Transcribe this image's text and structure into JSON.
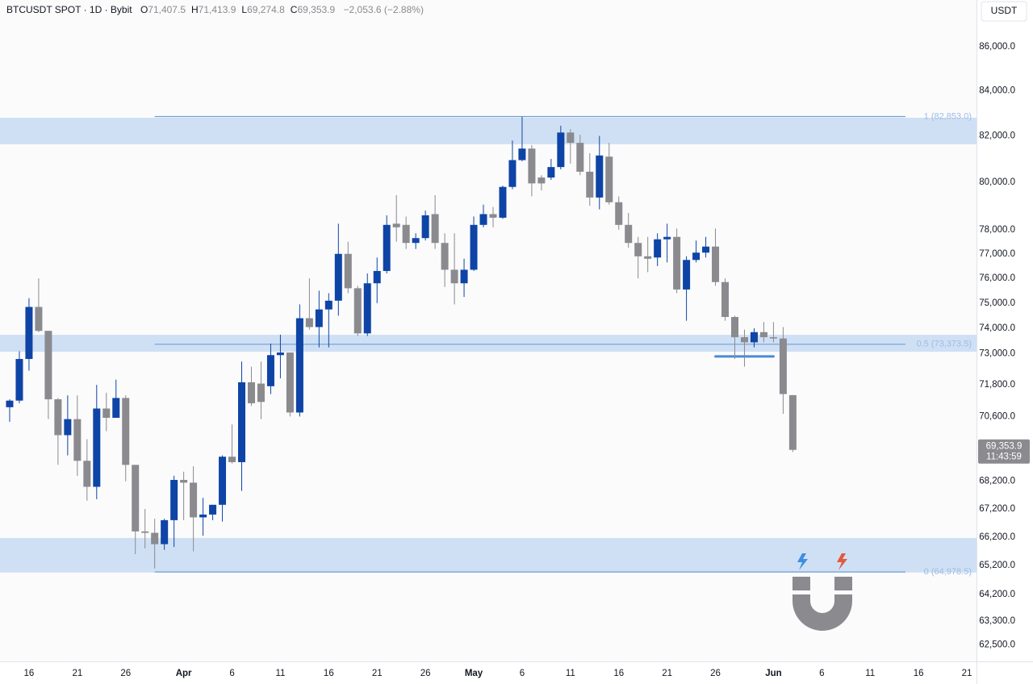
{
  "chart_data": {
    "type": "candlestick",
    "header": {
      "symbol": "BTCUSDT SPOT · 1D · Bybit",
      "fields": [
        {
          "key": "O",
          "value": "71,407.5"
        },
        {
          "key": "H",
          "value": "71,413.9"
        },
        {
          "key": "L",
          "value": "69,274.8"
        },
        {
          "key": "C",
          "value": "69,353.9"
        }
      ],
      "change": "−2,053.6 (−2.88%)"
    },
    "currency": "USDT",
    "x": [
      "03-14",
      "03-15",
      "03-16",
      "03-17",
      "03-18",
      "03-19",
      "03-20",
      "03-21",
      "03-22",
      "03-23",
      "03-24",
      "03-25",
      "03-26",
      "03-27",
      "03-28",
      "03-29",
      "03-30",
      "03-31",
      "04-01",
      "04-02",
      "04-03",
      "04-04",
      "04-05",
      "04-06",
      "04-07",
      "04-08",
      "04-09",
      "04-10",
      "04-11",
      "04-12",
      "04-13",
      "04-14",
      "04-15",
      "04-16",
      "04-17",
      "04-18",
      "04-19",
      "04-20",
      "04-21",
      "04-22",
      "04-23",
      "04-24",
      "04-25",
      "04-26",
      "04-27",
      "04-28",
      "04-29",
      "04-30",
      "05-01",
      "05-02",
      "05-03",
      "05-04",
      "05-05",
      "05-06",
      "05-07",
      "05-08",
      "05-09",
      "05-10",
      "05-11",
      "05-12",
      "05-13",
      "05-14",
      "05-15",
      "05-16",
      "05-17",
      "05-18",
      "05-19",
      "05-20",
      "05-21",
      "05-22",
      "05-23",
      "05-24",
      "05-25",
      "05-26",
      "05-27",
      "05-28",
      "05-29",
      "05-30",
      "05-31",
      "06-01",
      "06-02",
      "06-03"
    ],
    "open": [
      70950,
      71200,
      72800,
      74850,
      73900,
      71250,
      69900,
      70500,
      68950,
      68000,
      70900,
      70550,
      71300,
      68800,
      66400,
      66350,
      65950,
      66800,
      68250,
      68150,
      66900,
      67000,
      67350,
      69100,
      68900,
      71900,
      71850,
      71750,
      72950,
      73050,
      70750,
      74400,
      74050,
      74750,
      75100,
      77000,
      75600,
      73800,
      75800,
      76300,
      78250,
      78200,
      77450,
      77650,
      78650,
      77450,
      76350,
      75800,
      76350,
      78200,
      78650,
      78500,
      79800,
      80950,
      81450,
      80200,
      80200,
      80650,
      82150,
      81700,
      80450,
      79350,
      81100,
      79150,
      78200,
      77450,
      76900,
      76850,
      77600,
      77700,
      75550,
      76750,
      77050,
      77300,
      75850,
      74450,
      73650,
      73450,
      73850,
      73650,
      73600,
      71407.5
    ],
    "high": [
      71250,
      73100,
      75200,
      76000,
      73900,
      71300,
      71400,
      71400,
      69750,
      71800,
      71500,
      72000,
      71400,
      68800,
      67200,
      66850,
      66850,
      68400,
      68550,
      68750,
      67600,
      67350,
      69150,
      70300,
      72700,
      72500,
      72700,
      73400,
      73750,
      73050,
      74950,
      76000,
      75500,
      75400,
      78250,
      77500,
      75700,
      76200,
      76850,
      78600,
      79450,
      78550,
      77850,
      78800,
      79450,
      77850,
      77850,
      76800,
      78550,
      79050,
      78950,
      79850,
      81800,
      82850,
      81600,
      80300,
      81000,
      82450,
      82300,
      82050,
      81250,
      82000,
      81700,
      79400,
      78700,
      77700,
      77700,
      77850,
      78250,
      78050,
      76900,
      77550,
      77700,
      78050,
      76000,
      74500,
      73950,
      74000,
      74250,
      74250,
      74050,
      71413.9
    ],
    "low": [
      70400,
      71100,
      72350,
      73850,
      70500,
      68800,
      69150,
      68400,
      67500,
      67550,
      70050,
      70550,
      68200,
      65600,
      65800,
      65100,
      65750,
      65850,
      66800,
      65700,
      66250,
      66800,
      66750,
      68850,
      67850,
      71000,
      70500,
      71450,
      72050,
      70600,
      70600,
      73950,
      73250,
      73250,
      74500,
      75400,
      73700,
      73700,
      75000,
      76200,
      77500,
      77200,
      77200,
      77550,
      77200,
      75650,
      74950,
      75250,
      76300,
      78100,
      78100,
      78450,
      79700,
      80900,
      79400,
      79650,
      80100,
      80550,
      80800,
      80300,
      79000,
      78850,
      79050,
      78000,
      77250,
      76000,
      76250,
      76500,
      76650,
      75400,
      74300,
      76650,
      76850,
      75700,
      74300,
      72800,
      72500,
      73250,
      73450,
      73450,
      70700,
      69274.8
    ],
    "close": [
      71200,
      72800,
      74850,
      73900,
      71250,
      69900,
      70500,
      68950,
      68000,
      70900,
      70550,
      71300,
      68800,
      66400,
      66350,
      65950,
      66800,
      68250,
      68150,
      66900,
      67000,
      67350,
      69100,
      68900,
      71900,
      71100,
      71150,
      72950,
      73050,
      70750,
      74400,
      74050,
      74750,
      75100,
      77000,
      75600,
      73800,
      75800,
      76300,
      78200,
      78100,
      77450,
      77650,
      78600,
      77450,
      76350,
      75800,
      76350,
      78200,
      78650,
      78500,
      79800,
      80950,
      81450,
      79950,
      79950,
      80650,
      82150,
      81700,
      80450,
      79350,
      81150,
      79150,
      78200,
      77450,
      76900,
      76800,
      77600,
      77700,
      75550,
      76750,
      77050,
      77300,
      75850,
      74450,
      73650,
      73450,
      73850,
      73650,
      73600,
      71450,
      69353.9
    ],
    "up_color": "#0e44a6",
    "down_color": "#8a8a8f",
    "xlim": [
      "03-13",
      "06-22"
    ],
    "xticks": [
      {
        "value": "03-16",
        "label": "16"
      },
      {
        "value": "03-21",
        "label": "21"
      },
      {
        "value": "03-26",
        "label": "26"
      },
      {
        "value": "04-01",
        "label": "Apr"
      },
      {
        "value": "04-06",
        "label": "6"
      },
      {
        "value": "04-11",
        "label": "11"
      },
      {
        "value": "04-16",
        "label": "16"
      },
      {
        "value": "04-21",
        "label": "21"
      },
      {
        "value": "04-26",
        "label": "26"
      },
      {
        "value": "05-01",
        "label": "May"
      },
      {
        "value": "05-06",
        "label": "6"
      },
      {
        "value": "05-11",
        "label": "11"
      },
      {
        "value": "05-16",
        "label": "16"
      },
      {
        "value": "05-21",
        "label": "21"
      },
      {
        "value": "05-26",
        "label": "26"
      },
      {
        "value": "06-01",
        "label": "Jun"
      },
      {
        "value": "06-06",
        "label": "6"
      },
      {
        "value": "06-11",
        "label": "11"
      },
      {
        "value": "06-16",
        "label": "16"
      },
      {
        "value": "06-21",
        "label": "21"
      }
    ],
    "ylim": [
      61950,
      88170
    ],
    "log_scale": true,
    "grid": false,
    "yticks": [
      {
        "value": 86000,
        "label": "86,000.0"
      },
      {
        "value": 84000,
        "label": "84,000.0"
      },
      {
        "value": 82000,
        "label": "82,000.0"
      },
      {
        "value": 80000,
        "label": "80,000.0"
      },
      {
        "value": 78000,
        "label": "78,000.0"
      },
      {
        "value": 77000,
        "label": "77,000.0"
      },
      {
        "value": 76000,
        "label": "76,000.0"
      },
      {
        "value": 75000,
        "label": "75,000.0"
      },
      {
        "value": 74000,
        "label": "74,000.0"
      },
      {
        "value": 73000,
        "label": "73,000.0"
      },
      {
        "value": 71800,
        "label": "71,800.0"
      },
      {
        "value": 70600,
        "label": "70,600.0"
      },
      {
        "value": 68200,
        "label": "68,200.0"
      },
      {
        "value": 67200,
        "label": "67,200.0"
      },
      {
        "value": 66200,
        "label": "66,200.0"
      },
      {
        "value": 65200,
        "label": "65,200.0"
      },
      {
        "value": 64200,
        "label": "64,200.0"
      },
      {
        "value": 63300,
        "label": "63,300.0"
      },
      {
        "value": 62500,
        "label": "62,500.0"
      }
    ],
    "zones": [
      [
        81640,
        82800
      ],
      [
        73080,
        73745
      ],
      [
        64960,
        66170
      ]
    ],
    "zone_color": "#cfe0f4",
    "levels_start": "03-29",
    "levels": [
      {
        "value": 82853,
        "label": "1 (82,853.0)"
      },
      {
        "value": 73373.5,
        "label": "0.5 (73,373.5)"
      },
      {
        "value": 64978.5,
        "label": "0 (64,978.5)"
      }
    ],
    "level_color": "#6f9fd8",
    "segment": {
      "value": 72900,
      "from": "05-26",
      "to": "06-01",
      "color": "#4a8ad6"
    },
    "last_price_label": "69,353.9",
    "countdown": "11:43:59"
  }
}
